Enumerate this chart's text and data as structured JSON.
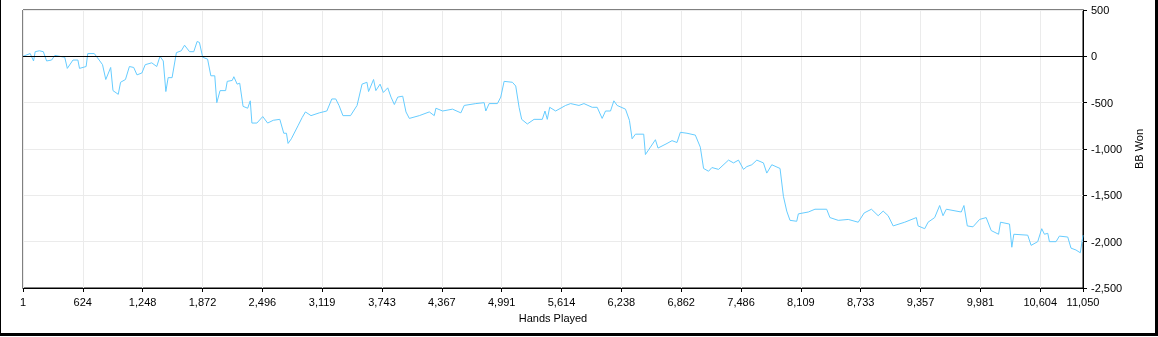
{
  "chart_data": {
    "type": "line",
    "xlabel": "Hands Played",
    "ylabel": "BB Won",
    "x": [
      1,
      76,
      111,
      128,
      172,
      213,
      247,
      299,
      333,
      436,
      463,
      522,
      573,
      590,
      659,
      676,
      744,
      795,
      830,
      864,
      915,
      939,
      994,
      1018,
      1069,
      1110,
      1155,
      1189,
      1240,
      1275,
      1343,
      1395,
      1429,
      1463,
      1490,
      1514,
      1555,
      1600,
      1651,
      1685,
      1737,
      1781,
      1816,
      1840,
      1874,
      1925,
      1959,
      2000,
      2021,
      2055,
      2113,
      2130,
      2182,
      2199,
      2233,
      2260,
      2295,
      2343,
      2370,
      2387,
      2439,
      2500,
      2551,
      2610,
      2678,
      2719,
      2747,
      2764,
      2798,
      2867,
      2911,
      2945,
      3003,
      3089,
      3168,
      3220,
      3261,
      3295,
      3336,
      3415,
      3483,
      3535,
      3586,
      3603,
      3655,
      3679,
      3723,
      3757,
      3803,
      3837,
      3872,
      3907,
      3959,
      3993,
      4028,
      4132,
      4236,
      4288,
      4305,
      4375,
      4478,
      4565,
      4600,
      4721,
      4808,
      4825,
      4860,
      4946,
      4981,
      5016,
      5102,
      5137,
      5172,
      5199,
      5258,
      5328,
      5414,
      5442,
      5466,
      5491,
      5553,
      5657,
      5709,
      5796,
      5848,
      5934,
      5986,
      6038,
      6073,
      6125,
      6160,
      6194,
      6281,
      6322,
      6350,
      6385,
      6471,
      6489,
      6541,
      6593,
      6620,
      6714,
      6766,
      6818,
      6853,
      6922,
      7009,
      7061,
      7095,
      7147,
      7182,
      7251,
      7355,
      7407,
      7459,
      7511,
      7546,
      7598,
      7650,
      7719,
      7754,
      7806,
      7892,
      7927,
      7962,
      7996,
      8066,
      8083,
      8187,
      8256,
      8378,
      8412,
      8499,
      8603,
      8707,
      8769,
      8845,
      8915,
      8967,
      9019,
      9071,
      9192,
      9313,
      9331,
      9400,
      9435,
      9504,
      9556,
      9591,
      9625,
      9781,
      9809,
      9844,
      9903,
      9972,
      10041,
      10093,
      10170,
      10190,
      10284,
      10308,
      10329,
      10474,
      10509,
      10578,
      10620,
      10648,
      10683,
      10700,
      10769,
      10804,
      10891,
      10925,
      10977,
      11022,
      11050
    ],
    "series": [
      {
        "color": "#66ccff",
        "values": [
          0,
          30,
          -50,
          50,
          60,
          50,
          -50,
          -40,
          10,
          -10,
          -130,
          -40,
          -40,
          -130,
          -110,
          30,
          30,
          -40,
          -90,
          -250,
          -120,
          -370,
          -410,
          -280,
          -250,
          -110,
          -120,
          -200,
          -180,
          -90,
          -70,
          -110,
          0,
          -50,
          -380,
          -230,
          -230,
          40,
          60,
          120,
          50,
          50,
          160,
          150,
          -10,
          -30,
          -210,
          -210,
          -500,
          -370,
          -370,
          -270,
          -260,
          -220,
          -300,
          -290,
          -540,
          -560,
          -480,
          -720,
          -720,
          -650,
          -720,
          -690,
          -680,
          -830,
          -830,
          -940,
          -890,
          -750,
          -660,
          -600,
          -640,
          -610,
          -590,
          -460,
          -460,
          -530,
          -640,
          -640,
          -530,
          -300,
          -280,
          -380,
          -250,
          -370,
          -300,
          -390,
          -340,
          -440,
          -520,
          -440,
          -430,
          -600,
          -670,
          -640,
          -600,
          -640,
          -560,
          -590,
          -570,
          -610,
          -530,
          -510,
          -500,
          -590,
          -510,
          -510,
          -440,
          -270,
          -280,
          -320,
          -550,
          -680,
          -730,
          -680,
          -680,
          -590,
          -680,
          -550,
          -590,
          -530,
          -510,
          -530,
          -510,
          -550,
          -550,
          -670,
          -590,
          -590,
          -480,
          -530,
          -570,
          -690,
          -890,
          -840,
          -840,
          -1060,
          -980,
          -900,
          -990,
          -940,
          -910,
          -930,
          -820,
          -830,
          -850,
          -980,
          -1210,
          -1240,
          -1200,
          -1220,
          -1120,
          -1150,
          -1120,
          -1220,
          -1190,
          -1170,
          -1120,
          -1150,
          -1260,
          -1170,
          -1210,
          -1510,
          -1670,
          -1770,
          -1780,
          -1700,
          -1680,
          -1650,
          -1650,
          -1740,
          -1770,
          -1760,
          -1790,
          -1690,
          -1650,
          -1720,
          -1670,
          -1720,
          -1830,
          -1790,
          -1740,
          -1830,
          -1860,
          -1790,
          -1740,
          -1610,
          -1720,
          -1650,
          -1680,
          -1610,
          -1830,
          -1840,
          -1760,
          -1740,
          -1880,
          -1920,
          -1790,
          -1810,
          -2060,
          -1920,
          -1930,
          -2040,
          -2000,
          -1860,
          -1920,
          -1910,
          -2000,
          -2000,
          -1940,
          -1950,
          -2070,
          -2090,
          -2120,
          -1930
        ]
      }
    ],
    "xlim": [
      1,
      11050
    ],
    "xticks": [
      1,
      624,
      {
        "value": 1248,
        "label": "1,248"
      },
      {
        "value": 1872,
        "label": "1,872"
      },
      {
        "value": 2496,
        "label": "2,496"
      },
      {
        "value": 3119,
        "label": "3,119"
      },
      {
        "value": 3743,
        "label": "3,743"
      },
      {
        "value": 4367,
        "label": "4,367"
      },
      {
        "value": 4991,
        "label": "4,991"
      },
      {
        "value": 5614,
        "label": "5,614"
      },
      {
        "value": 6238,
        "label": "6,238"
      },
      {
        "value": 6862,
        "label": "6,862"
      },
      {
        "value": 7486,
        "label": "7,486"
      },
      {
        "value": 8109,
        "label": "8,109"
      },
      {
        "value": 8733,
        "label": "8,733"
      },
      {
        "value": 9357,
        "label": "9,357"
      },
      {
        "value": 9981,
        "label": "9,981"
      },
      {
        "value": 10604,
        "label": "10,604"
      },
      {
        "value": 11050,
        "label": "11,050"
      }
    ],
    "ylim": [
      -2500,
      500
    ],
    "yticks": [
      500,
      0,
      -500,
      {
        "value": -1000,
        "label": "-1,000"
      },
      {
        "value": -1500,
        "label": "-1,500"
      },
      {
        "value": -2000,
        "label": "-2,000"
      },
      {
        "value": -2500,
        "label": "-2,500"
      }
    ],
    "ref_lines": [
      {
        "axis": "y",
        "value": 0,
        "color": "#000000",
        "line_style": "solid"
      }
    ],
    "grid": true,
    "marker": "none",
    "line_style": "solid"
  }
}
